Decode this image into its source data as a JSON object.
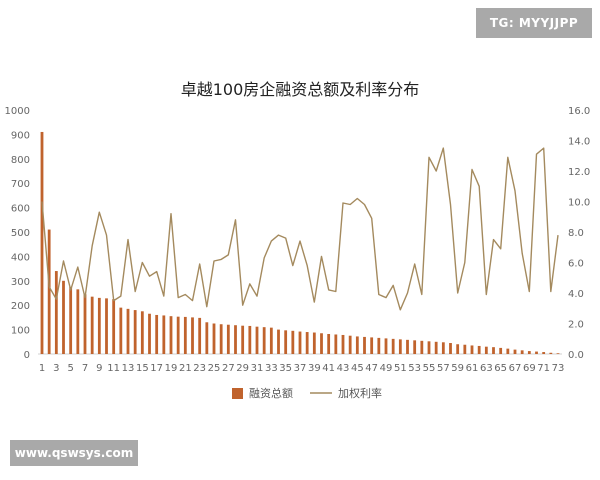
{
  "watermarks": {
    "tg": "TG: MYYJJPP",
    "site": "www.qswsys.com"
  },
  "chart_data": {
    "type": "bar+line",
    "title": "卓越100房企融资总额及利率分布",
    "categories": [
      "1",
      "2",
      "3",
      "4",
      "5",
      "6",
      "7",
      "8",
      "9",
      "10",
      "11",
      "12",
      "13",
      "14",
      "15",
      "16",
      "17",
      "18",
      "19",
      "20",
      "21",
      "22",
      "23",
      "24",
      "25",
      "26",
      "27",
      "28",
      "29",
      "30",
      "31",
      "32",
      "33",
      "34",
      "35",
      "36",
      "37",
      "38",
      "39",
      "40",
      "41",
      "42",
      "43",
      "44",
      "45",
      "46",
      "47",
      "48",
      "49",
      "50",
      "51",
      "52",
      "53",
      "54",
      "55",
      "56",
      "57",
      "58",
      "59",
      "60",
      "61",
      "62",
      "63",
      "64",
      "65",
      "66",
      "67",
      "68",
      "69",
      "70",
      "71",
      "72",
      "73"
    ],
    "x_tick_labels": [
      "1",
      "3",
      "5",
      "7",
      "9",
      "11",
      "13",
      "15",
      "17",
      "19",
      "21",
      "23",
      "25",
      "27",
      "29",
      "31",
      "33",
      "35",
      "37",
      "39",
      "41",
      "43",
      "45",
      "47",
      "49",
      "51",
      "53",
      "55",
      "57",
      "59",
      "61",
      "63",
      "65",
      "67",
      "69",
      "71",
      "73"
    ],
    "left_axis": {
      "ticks": [
        "0",
        "100",
        "200",
        "300",
        "400",
        "500",
        "600",
        "700",
        "800",
        "900",
        "1000"
      ],
      "range": [
        0,
        1000
      ]
    },
    "right_axis": {
      "ticks": [
        "0.0",
        "2.0",
        "4.0",
        "6.0",
        "8.0",
        "10.0",
        "12.0",
        "14.0",
        "16.0"
      ],
      "range": [
        0,
        16
      ]
    },
    "series": [
      {
        "name": "融资总额",
        "kind": "bar",
        "axis": "left",
        "color": "#c0632d",
        "values": [
          910,
          510,
          340,
          300,
          275,
          265,
          245,
          235,
          230,
          228,
          225,
          190,
          185,
          180,
          175,
          165,
          160,
          158,
          155,
          153,
          152,
          150,
          148,
          130,
          125,
          122,
          120,
          118,
          116,
          115,
          112,
          110,
          108,
          100,
          97,
          95,
          92,
          90,
          88,
          85,
          82,
          80,
          78,
          75,
          72,
          70,
          68,
          66,
          64,
          62,
          60,
          58,
          56,
          54,
          52,
          50,
          48,
          45,
          40,
          38,
          35,
          33,
          30,
          28,
          25,
          22,
          18,
          15,
          12,
          10,
          8,
          5,
          3
        ]
      },
      {
        "name": "加权利率",
        "kind": "line",
        "axis": "right",
        "color": "#a48a5e",
        "values": [
          10.0,
          4.4,
          3.6,
          6.1,
          4.2,
          5.7,
          3.7,
          7.1,
          9.3,
          7.8,
          3.5,
          3.8,
          7.5,
          4.1,
          6.0,
          5.1,
          5.4,
          3.8,
          9.2,
          3.7,
          3.9,
          3.5,
          5.9,
          3.1,
          6.1,
          6.2,
          6.5,
          8.8,
          3.2,
          4.6,
          3.8,
          6.3,
          7.4,
          7.8,
          7.6,
          5.8,
          7.4,
          5.8,
          3.4,
          6.4,
          4.2,
          4.1,
          9.9,
          9.8,
          10.2,
          9.8,
          8.9,
          3.9,
          3.7,
          4.5,
          2.9,
          4.0,
          5.9,
          3.9,
          12.9,
          12.0,
          13.5,
          9.8,
          4.0,
          6.0,
          12.1,
          11.0,
          3.9,
          7.5,
          6.9,
          12.9,
          10.7,
          6.6,
          4.1,
          13.1,
          13.5,
          4.1,
          7.8
        ]
      }
    ],
    "legend": {
      "position": "bottom",
      "items": [
        "融资总额",
        "加权利率"
      ]
    },
    "grid": false
  }
}
